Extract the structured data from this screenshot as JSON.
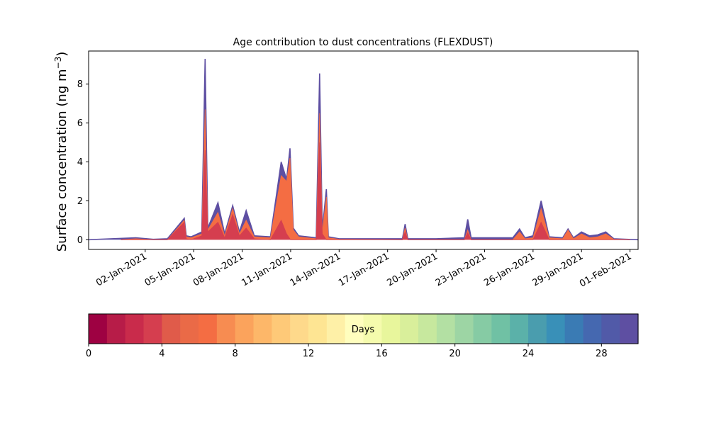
{
  "chart_data": {
    "type": "area",
    "title": "Age contribution to dust concentrations (FLEXDUST)",
    "ylabel": "Surface concentration (ng m",
    "ylabel_superscript": "−3",
    "ylabel_close": ")",
    "xlabel": "",
    "ylim": [
      -0.5,
      9.7
    ],
    "xlim": [
      "2020-12-29T12:00",
      "2021-02-01T12:00"
    ],
    "grid": false,
    "y_ticks": [
      0,
      2,
      4,
      6,
      8
    ],
    "x_ticks": [
      {
        "date": "2021-01-02",
        "label": "02-Jan-2021"
      },
      {
        "date": "2021-01-05",
        "label": "05-Jan-2021"
      },
      {
        "date": "2021-01-08",
        "label": "08-Jan-2021"
      },
      {
        "date": "2021-01-11",
        "label": "11-Jan-2021"
      },
      {
        "date": "2021-01-14",
        "label": "14-Jan-2021"
      },
      {
        "date": "2021-01-17",
        "label": "17-Jan-2021"
      },
      {
        "date": "2021-01-20",
        "label": "20-Jan-2021"
      },
      {
        "date": "2021-01-23",
        "label": "23-Jan-2021"
      },
      {
        "date": "2021-01-26",
        "label": "26-Jan-2021"
      },
      {
        "date": "2021-01-29",
        "label": "29-Jan-2021"
      },
      {
        "date": "2021-02-01",
        "label": "01-Feb-2021"
      }
    ],
    "series": [
      {
        "color": "#d53e4f",
        "points": [
          [
            "2020-12-31T12:00",
            0
          ],
          [
            "2021-01-02T12:00",
            0
          ],
          [
            "2021-01-03T09:00",
            0
          ],
          [
            "2021-01-04T10:00",
            0.9
          ],
          [
            "2021-01-04T13:00",
            0.05
          ],
          [
            "2021-01-04T20:00",
            0
          ],
          [
            "2021-01-05T12:00",
            0.2
          ],
          [
            "2021-01-05T17:00",
            4.6
          ],
          [
            "2021-01-05T21:00",
            0.4
          ],
          [
            "2021-01-06T12:00",
            0.9
          ],
          [
            "2021-01-06T22:00",
            0.1
          ],
          [
            "2021-01-07T10:00",
            1.3
          ],
          [
            "2021-01-07T20:00",
            0.2
          ],
          [
            "2021-01-08T06:00",
            0.6
          ],
          [
            "2021-01-08T18:00",
            0.05
          ],
          [
            "2021-01-09T18:00",
            0
          ],
          [
            "2021-01-10T10:00",
            1.0
          ],
          [
            "2021-01-10T18:00",
            0.3
          ],
          [
            "2021-01-11T00:00",
            0
          ],
          [
            "2021-01-12T14:00",
            0
          ],
          [
            "2021-01-12T19:00",
            5.0
          ],
          [
            "2021-01-12T23:00",
            0.3
          ],
          [
            "2021-01-13T05:00",
            0
          ],
          [
            "2021-01-14T00:00",
            0
          ],
          [
            "2021-01-17T22:00",
            0
          ],
          [
            "2021-01-18T02:00",
            0.4
          ],
          [
            "2021-01-18T06:00",
            0
          ],
          [
            "2021-01-21T18:00",
            0
          ],
          [
            "2021-01-21T23:00",
            0.35
          ],
          [
            "2021-01-22T04:00",
            0
          ],
          [
            "2021-01-26T00:00",
            0
          ],
          [
            "2021-01-26T12:00",
            0.9
          ],
          [
            "2021-01-27T00:00",
            0
          ],
          [
            "2021-02-01T00:00",
            0
          ]
        ]
      },
      {
        "color": "#f46d43",
        "points": [
          [
            "2020-12-31T12:00",
            0
          ],
          [
            "2021-01-01T10:00",
            0.05
          ],
          [
            "2021-01-02T12:00",
            0
          ],
          [
            "2021-01-03T09:00",
            0
          ],
          [
            "2021-01-04T10:00",
            1.0
          ],
          [
            "2021-01-04T13:00",
            0.15
          ],
          [
            "2021-01-04T20:00",
            0.1
          ],
          [
            "2021-01-05T12:00",
            0.3
          ],
          [
            "2021-01-05T17:00",
            6.7
          ],
          [
            "2021-01-05T21:00",
            0.5
          ],
          [
            "2021-01-06T12:00",
            1.4
          ],
          [
            "2021-01-06T22:00",
            0.2
          ],
          [
            "2021-01-07T10:00",
            1.6
          ],
          [
            "2021-01-07T20:00",
            0.3
          ],
          [
            "2021-01-08T06:00",
            1.0
          ],
          [
            "2021-01-08T18:00",
            0.15
          ],
          [
            "2021-01-09T18:00",
            0.1
          ],
          [
            "2021-01-10T10:00",
            3.3
          ],
          [
            "2021-01-10T18:00",
            3.0
          ],
          [
            "2021-01-10T23:00",
            4.2
          ],
          [
            "2021-01-11T04:00",
            0.5
          ],
          [
            "2021-01-11T12:00",
            0.15
          ],
          [
            "2021-01-12T14:00",
            0.05
          ],
          [
            "2021-01-12T19:00",
            6.5
          ],
          [
            "2021-01-12T23:00",
            0.4
          ],
          [
            "2021-01-13T05:00",
            2.2
          ],
          [
            "2021-01-13T08:00",
            0.1
          ],
          [
            "2021-01-14T00:00",
            0.02
          ],
          [
            "2021-01-17T22:00",
            0
          ],
          [
            "2021-01-18T02:00",
            0.6
          ],
          [
            "2021-01-18T06:00",
            0
          ],
          [
            "2021-01-21T18:00",
            0
          ],
          [
            "2021-01-21T23:00",
            0.5
          ],
          [
            "2021-01-22T04:00",
            0
          ],
          [
            "2021-01-24T18:00",
            0
          ],
          [
            "2021-01-25T04:00",
            0.4
          ],
          [
            "2021-01-25T12:00",
            0.05
          ],
          [
            "2021-01-26T00:00",
            0.1
          ],
          [
            "2021-01-26T12:00",
            1.6
          ],
          [
            "2021-01-27T00:00",
            0.1
          ],
          [
            "2021-01-27T20:00",
            0.05
          ],
          [
            "2021-01-28T04:00",
            0.5
          ],
          [
            "2021-01-28T12:00",
            0.05
          ],
          [
            "2021-01-29T00:00",
            0.3
          ],
          [
            "2021-01-29T12:00",
            0.1
          ],
          [
            "2021-01-30T00:00",
            0.15
          ],
          [
            "2021-01-30T12:00",
            0.3
          ],
          [
            "2021-01-31T00:00",
            0.02
          ],
          [
            "2021-02-01T00:00",
            0
          ]
        ]
      },
      {
        "color": "#5e4fa2",
        "points": [
          [
            "2020-12-29T12:00",
            0
          ],
          [
            "2021-01-01T10:00",
            0.1
          ],
          [
            "2021-01-02T12:00",
            0.02
          ],
          [
            "2021-01-03T09:00",
            0.05
          ],
          [
            "2021-01-04T10:00",
            1.1
          ],
          [
            "2021-01-04T13:00",
            0.2
          ],
          [
            "2021-01-04T20:00",
            0.15
          ],
          [
            "2021-01-05T12:00",
            0.4
          ],
          [
            "2021-01-05T17:00",
            9.3
          ],
          [
            "2021-01-05T21:00",
            0.6
          ],
          [
            "2021-01-06T12:00",
            1.9
          ],
          [
            "2021-01-06T22:00",
            0.3
          ],
          [
            "2021-01-07T10:00",
            1.75
          ],
          [
            "2021-01-07T20:00",
            0.4
          ],
          [
            "2021-01-08T06:00",
            1.5
          ],
          [
            "2021-01-08T18:00",
            0.2
          ],
          [
            "2021-01-09T18:00",
            0.15
          ],
          [
            "2021-01-10T10:00",
            4.0
          ],
          [
            "2021-01-10T18:00",
            3.1
          ],
          [
            "2021-01-10T23:00",
            4.7
          ],
          [
            "2021-01-11T04:00",
            0.6
          ],
          [
            "2021-01-11T12:00",
            0.2
          ],
          [
            "2021-01-12T14:00",
            0.1
          ],
          [
            "2021-01-12T19:00",
            8.55
          ],
          [
            "2021-01-12T23:00",
            0.5
          ],
          [
            "2021-01-13T05:00",
            2.6
          ],
          [
            "2021-01-13T08:00",
            0.15
          ],
          [
            "2021-01-14T00:00",
            0.05
          ],
          [
            "2021-01-16T00:00",
            0.05
          ],
          [
            "2021-01-17T22:00",
            0.05
          ],
          [
            "2021-01-18T02:00",
            0.8
          ],
          [
            "2021-01-18T06:00",
            0.05
          ],
          [
            "2021-01-20T00:00",
            0.05
          ],
          [
            "2021-01-21T18:00",
            0.1
          ],
          [
            "2021-01-21T23:00",
            1.05
          ],
          [
            "2021-01-22T04:00",
            0.1
          ],
          [
            "2021-01-24T18:00",
            0.1
          ],
          [
            "2021-01-25T04:00",
            0.55
          ],
          [
            "2021-01-25T12:00",
            0.1
          ],
          [
            "2021-01-26T00:00",
            0.2
          ],
          [
            "2021-01-26T12:00",
            2.0
          ],
          [
            "2021-01-27T00:00",
            0.15
          ],
          [
            "2021-01-27T20:00",
            0.1
          ],
          [
            "2021-01-28T04:00",
            0.55
          ],
          [
            "2021-01-28T12:00",
            0.1
          ],
          [
            "2021-01-29T00:00",
            0.4
          ],
          [
            "2021-01-29T12:00",
            0.2
          ],
          [
            "2021-01-30T00:00",
            0.25
          ],
          [
            "2021-01-30T12:00",
            0.4
          ],
          [
            "2021-01-31T00:00",
            0.05
          ],
          [
            "2021-02-01T12:00",
            0
          ]
        ]
      }
    ],
    "colorbar": {
      "label": "Days",
      "range": [
        0,
        30
      ],
      "ticks": [
        0,
        4,
        8,
        12,
        16,
        20,
        24,
        28
      ],
      "colors": [
        "#9e0142",
        "#b71c48",
        "#c92b4b",
        "#d53e4f",
        "#e05b4a",
        "#ea6a47",
        "#f46d43",
        "#f78c51",
        "#fba35c",
        "#fdb769",
        "#fec978",
        "#fed98b",
        "#fee593",
        "#fef0a7",
        "#fffebe",
        "#f5fbad",
        "#e8f69c",
        "#d9ef9b",
        "#c7e89e",
        "#b3e0a3",
        "#9dd5a4",
        "#86cba4",
        "#70c1a4",
        "#5bb1a9",
        "#4a9dae",
        "#3990b8",
        "#3a7bb4",
        "#4568b0",
        "#515aa8",
        "#5e4fa2"
      ]
    }
  }
}
